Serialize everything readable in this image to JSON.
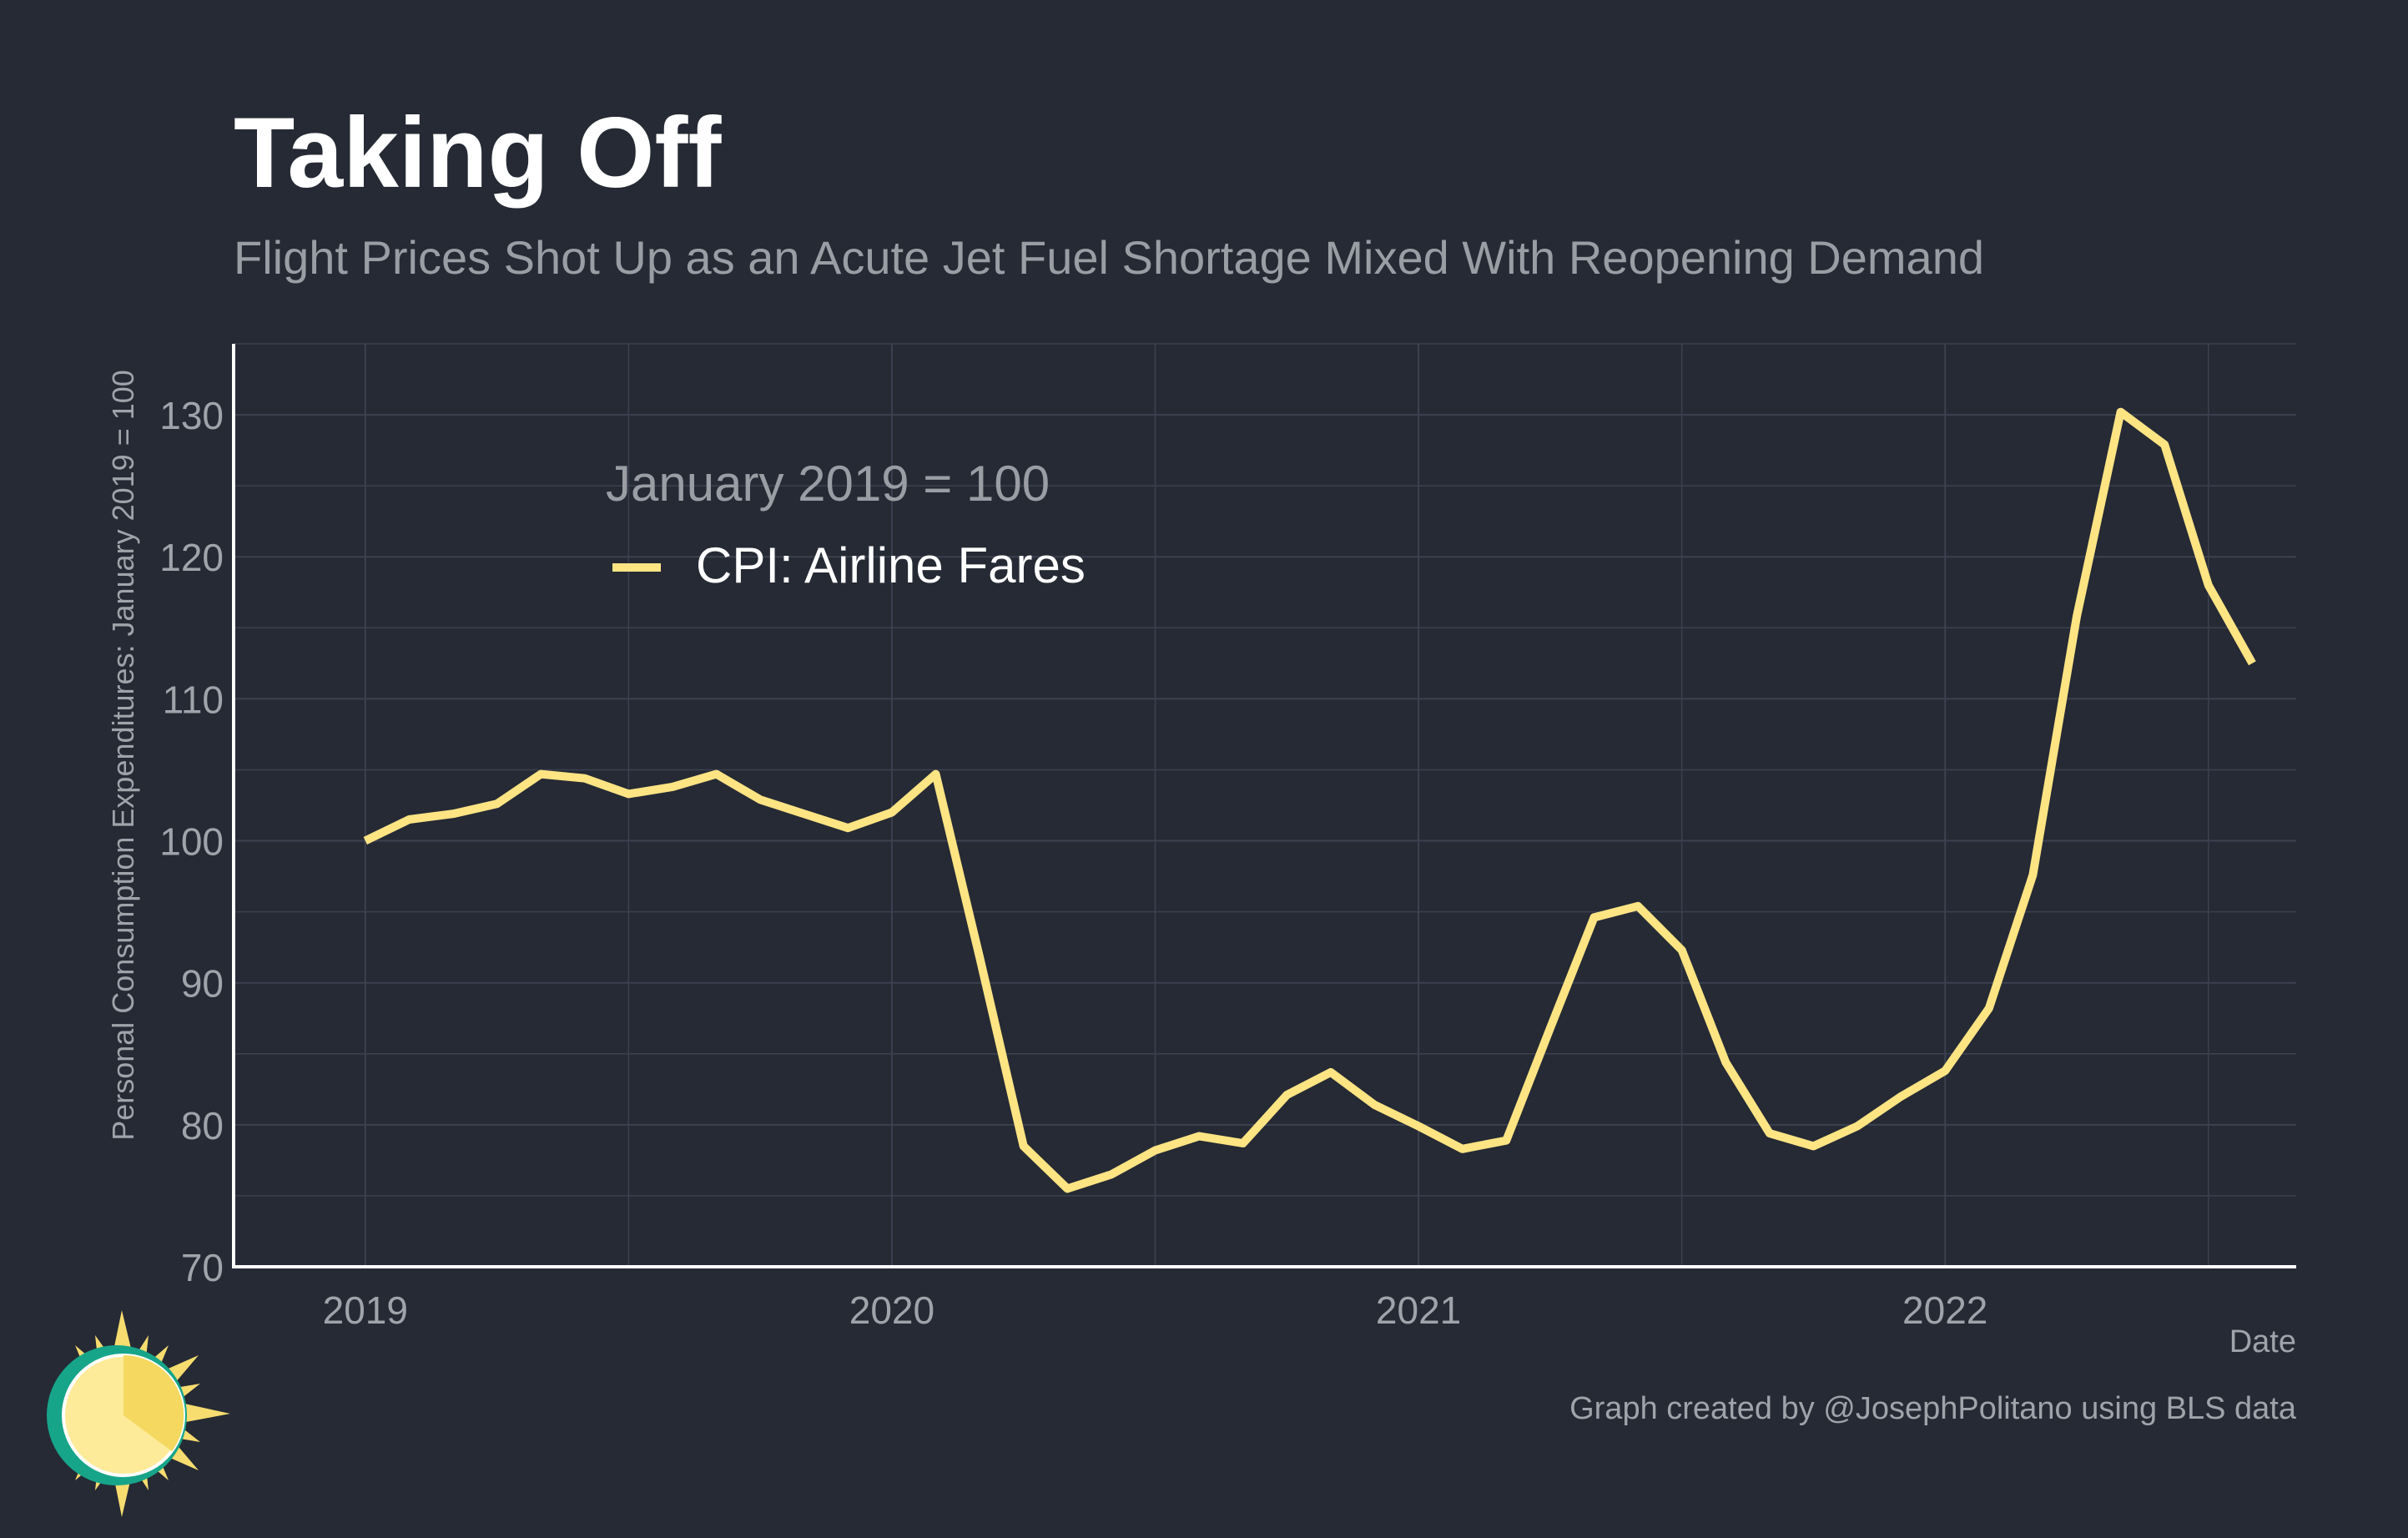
{
  "header": {
    "title": "Taking Off",
    "subtitle": "Flight Prices Shot Up as an Acute Jet Fuel Shortage Mixed With Reopening Demand"
  },
  "legend": {
    "title": "January 2019 = 100",
    "items": [
      {
        "label": "CPI: Airline Fares",
        "color": "#ffe484"
      }
    ]
  },
  "caption": "Graph created by @JosephPolitano using BLS data",
  "logo": {
    "icon": "sun-logo-icon"
  },
  "colors": {
    "background": "#252a34",
    "grid": "#3c4150",
    "axis": "#ffffff",
    "series": "#ffe484",
    "muted_text": "#a0a3aa"
  },
  "chart_data": {
    "type": "line",
    "title": "Taking Off",
    "subtitle": "Flight Prices Shot Up as an Acute Jet Fuel Shortage Mixed With Reopening Demand",
    "xlabel": "Date",
    "ylabel": "Personal Consumption Expenditures: January 2019 = 100",
    "ylim": [
      70,
      135
    ],
    "yticks": [
      70,
      80,
      90,
      100,
      110,
      120,
      130
    ],
    "xlim": [
      "2018-10",
      "2022-09"
    ],
    "xticks": [
      "2019",
      "2020",
      "2021",
      "2022"
    ],
    "grid": true,
    "legend_position": "top-left",
    "series": [
      {
        "name": "CPI: Airline Fares",
        "color": "#ffe484",
        "x": [
          "2019-01",
          "2019-02",
          "2019-03",
          "2019-04",
          "2019-05",
          "2019-06",
          "2019-07",
          "2019-08",
          "2019-09",
          "2019-10",
          "2019-11",
          "2019-12",
          "2020-01",
          "2020-02",
          "2020-03",
          "2020-04",
          "2020-05",
          "2020-06",
          "2020-07",
          "2020-08",
          "2020-09",
          "2020-10",
          "2020-11",
          "2020-12",
          "2021-01",
          "2021-02",
          "2021-03",
          "2021-04",
          "2021-05",
          "2021-06",
          "2021-07",
          "2021-08",
          "2021-09",
          "2021-10",
          "2021-11",
          "2021-12",
          "2022-01",
          "2022-02",
          "2022-03",
          "2022-04",
          "2022-05",
          "2022-06",
          "2022-07",
          "2022-08"
        ],
        "values": [
          100.0,
          101.5,
          101.9,
          102.6,
          104.7,
          104.4,
          103.3,
          103.8,
          104.7,
          102.9,
          101.9,
          100.9,
          102.0,
          104.7,
          91.8,
          78.5,
          75.5,
          76.5,
          78.2,
          79.2,
          78.7,
          82.1,
          83.7,
          81.4,
          79.9,
          78.3,
          78.9,
          86.8,
          94.6,
          95.4,
          92.3,
          84.4,
          79.4,
          78.5,
          79.9,
          82.0,
          83.8,
          88.2,
          97.6,
          115.8,
          130.2,
          127.9,
          118.0,
          112.5
        ]
      }
    ]
  }
}
